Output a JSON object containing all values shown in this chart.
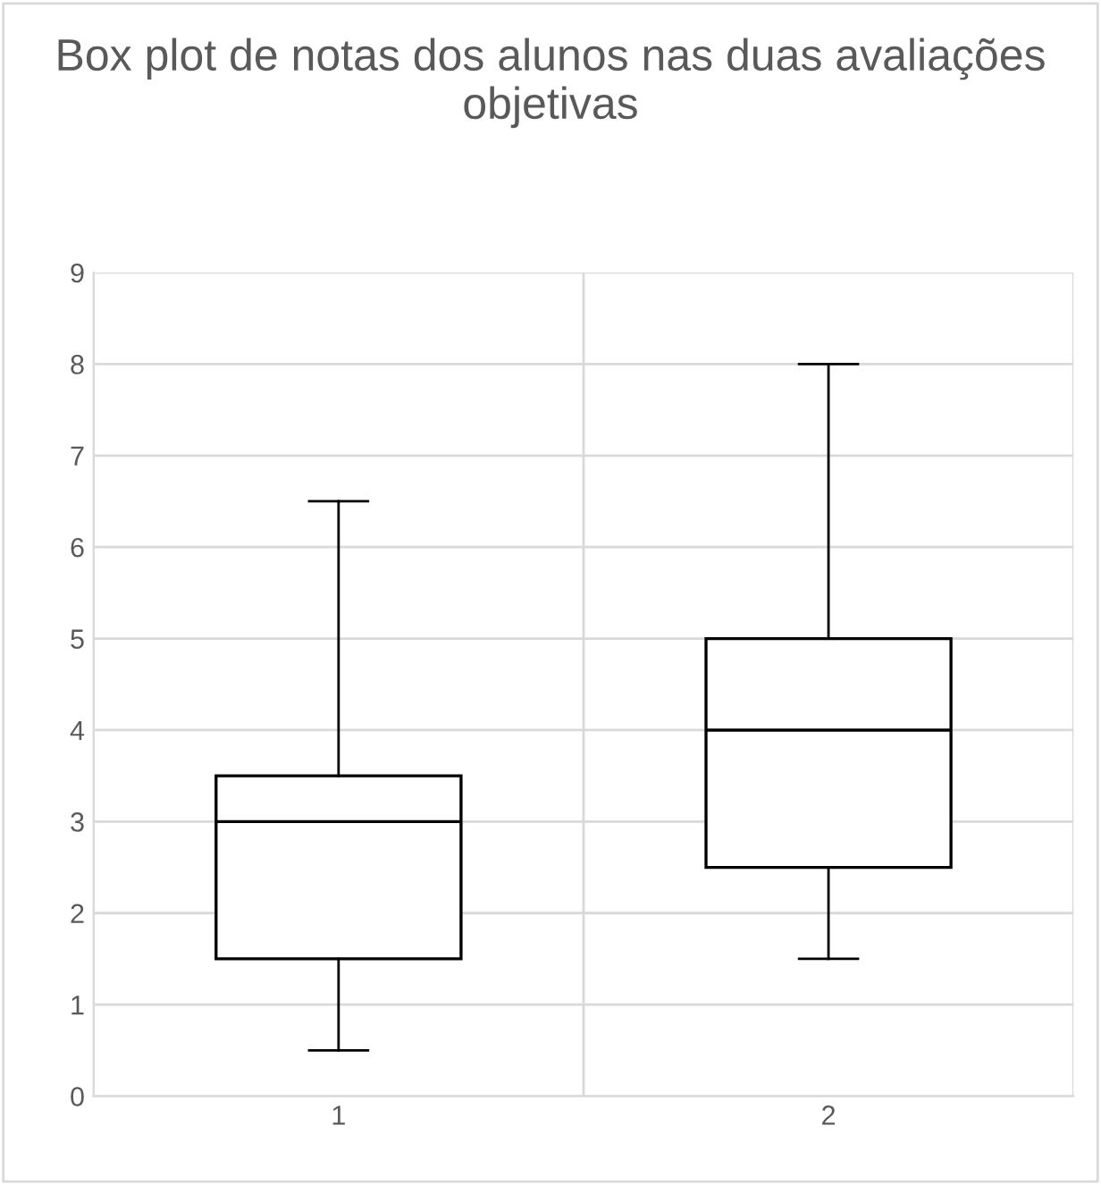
{
  "chart_data": {
    "type": "box",
    "title": "Box plot de notas dos alunos nas duas avaliações objetivas",
    "categories": [
      "1",
      "2"
    ],
    "boxes": [
      {
        "low": 0.5,
        "q1": 1.5,
        "median": 3,
        "q3": 3.5,
        "high": 6.5
      },
      {
        "low": 1.5,
        "q1": 2.5,
        "median": 4,
        "q3": 5,
        "high": 8
      }
    ],
    "color": "#000000",
    "ylim": [
      0,
      9
    ],
    "yticks": [
      0,
      1,
      2,
      3,
      4,
      5,
      6,
      7,
      8,
      9
    ],
    "grid": true
  }
}
